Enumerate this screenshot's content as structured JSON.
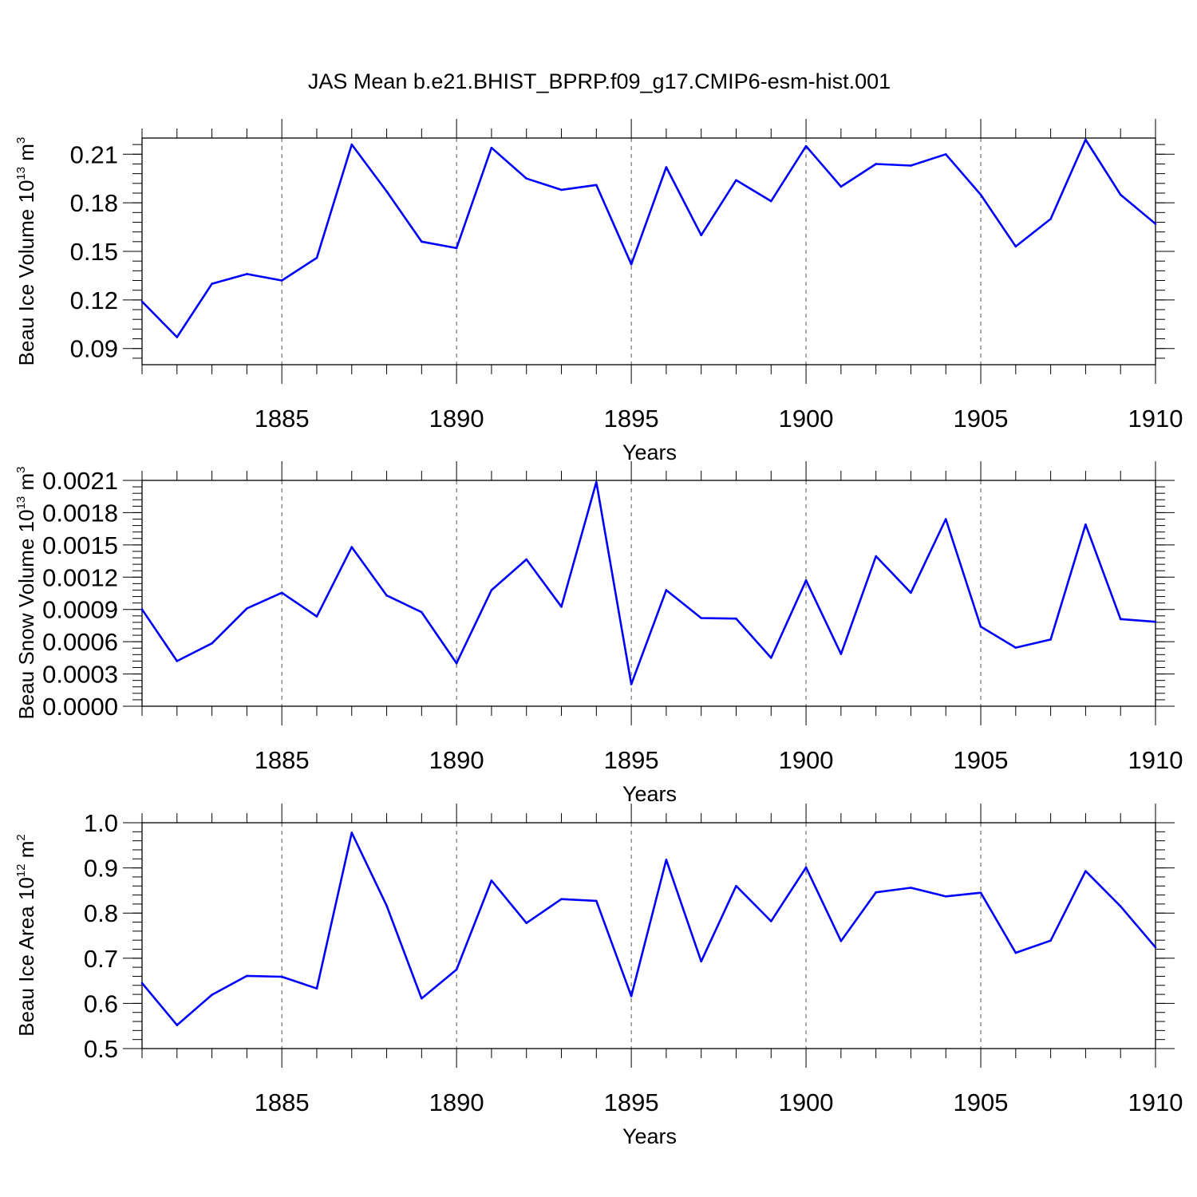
{
  "title": "JAS Mean b.e21.BHIST_BPRP.f09_g17.CMIP6-esm-hist.001",
  "colors": {
    "line": "#0000ff",
    "axis": "#000000",
    "grid": "#555555"
  },
  "chart_data": [
    {
      "type": "line",
      "title": "JAS Mean b.e21.BHIST_BPRP.f09_g17.CMIP6-esm-hist.001",
      "ylabel": {
        "text": "Beau Ice Volume 10",
        "sup": "13",
        "unit": " m",
        "unit_sup": "3"
      },
      "xlabel": "Years",
      "xlim": [
        1881,
        1910
      ],
      "ylim": [
        0.08,
        0.22
      ],
      "yticks": [
        0.09,
        0.12,
        0.15,
        0.18,
        0.21
      ],
      "ytick_labels": [
        "0.09",
        "0.12",
        "0.15",
        "0.18",
        "0.21"
      ],
      "xticks": [
        1885,
        1890,
        1895,
        1900,
        1905,
        1910
      ],
      "xtick_labels": [
        "1885",
        "1890",
        "1895",
        "1900",
        "1905",
        "1910"
      ],
      "grid": "vertical dashed at major x ticks",
      "series": [
        {
          "name": "Beau Ice Volume",
          "x": [
            1881,
            1882,
            1883,
            1884,
            1885,
            1886,
            1887,
            1888,
            1889,
            1890,
            1891,
            1892,
            1893,
            1894,
            1895,
            1896,
            1897,
            1898,
            1899,
            1900,
            1901,
            1902,
            1903,
            1904,
            1905,
            1906,
            1907,
            1908,
            1909,
            1910
          ],
          "values": [
            0.119,
            0.097,
            0.13,
            0.136,
            0.132,
            0.146,
            0.216,
            0.187,
            0.156,
            0.152,
            0.214,
            0.195,
            0.188,
            0.191,
            0.142,
            0.202,
            0.16,
            0.194,
            0.181,
            0.215,
            0.19,
            0.204,
            0.203,
            0.21,
            0.185,
            0.153,
            0.17,
            0.219,
            0.185,
            0.167
          ]
        }
      ]
    },
    {
      "type": "line",
      "ylabel": {
        "text": "Beau Snow Volume 10",
        "sup": "13",
        "unit": " m",
        "unit_sup": "3"
      },
      "xlabel": "Years",
      "xlim": [
        1881,
        1910
      ],
      "ylim": [
        0.0,
        0.0021
      ],
      "yticks": [
        0.0,
        0.0003,
        0.0006,
        0.0009,
        0.0012,
        0.0015,
        0.0018,
        0.0021
      ],
      "ytick_labels": [
        "0.0000",
        "0.0003",
        "0.0006",
        "0.0009",
        "0.0012",
        "0.0015",
        "0.0018",
        "0.0021"
      ],
      "xticks": [
        1885,
        1890,
        1895,
        1900,
        1905,
        1910
      ],
      "xtick_labels": [
        "1885",
        "1890",
        "1895",
        "1900",
        "1905",
        "1910"
      ],
      "grid": "vertical dashed at major x ticks",
      "series": [
        {
          "name": "Beau Snow Volume",
          "x": [
            1881,
            1882,
            1883,
            1884,
            1885,
            1886,
            1887,
            1888,
            1889,
            1890,
            1891,
            1892,
            1893,
            1894,
            1895,
            1896,
            1897,
            1898,
            1899,
            1900,
            1901,
            1902,
            1903,
            1904,
            1905,
            1906,
            1907,
            1908,
            1909,
            1910
          ],
          "values": [
            0.0009,
            0.00042,
            0.000585,
            0.00091,
            0.001055,
            0.000835,
            0.00148,
            0.00103,
            0.000875,
            0.0004,
            0.00108,
            0.001365,
            0.000925,
            0.002085,
            0.000205,
            0.00108,
            0.00082,
            0.000815,
            0.00045,
            0.00117,
            0.000485,
            0.001395,
            0.001055,
            0.00174,
            0.00074,
            0.000545,
            0.00062,
            0.00169,
            0.00081,
            0.000785
          ]
        }
      ]
    },
    {
      "type": "line",
      "ylabel": {
        "text": "Beau Ice Area 10",
        "sup": "12",
        "unit": " m",
        "unit_sup": "2"
      },
      "xlabel": "Years",
      "xlim": [
        1881,
        1910
      ],
      "ylim": [
        0.5,
        1.0
      ],
      "yticks": [
        0.5,
        0.6,
        0.7,
        0.8,
        0.9,
        1.0
      ],
      "ytick_labels": [
        "0.5",
        "0.6",
        "0.7",
        "0.8",
        "0.9",
        "1.0"
      ],
      "xticks": [
        1885,
        1890,
        1895,
        1900,
        1905,
        1910
      ],
      "xtick_labels": [
        "1885",
        "1890",
        "1895",
        "1900",
        "1905",
        "1910"
      ],
      "grid": "vertical dashed at major x ticks",
      "series": [
        {
          "name": "Beau Ice Area",
          "x": [
            1881,
            1882,
            1883,
            1884,
            1885,
            1886,
            1887,
            1888,
            1889,
            1890,
            1891,
            1892,
            1893,
            1894,
            1895,
            1896,
            1897,
            1898,
            1899,
            1900,
            1901,
            1902,
            1903,
            1904,
            1905,
            1906,
            1907,
            1908,
            1909,
            1910
          ],
          "values": [
            0.645,
            0.552,
            0.619,
            0.661,
            0.659,
            0.633,
            0.978,
            0.816,
            0.611,
            0.675,
            0.872,
            0.778,
            0.831,
            0.827,
            0.616,
            0.918,
            0.693,
            0.86,
            0.782,
            0.901,
            0.738,
            0.846,
            0.856,
            0.837,
            0.845,
            0.712,
            0.739,
            0.893,
            0.815,
            0.724
          ]
        }
      ]
    }
  ]
}
